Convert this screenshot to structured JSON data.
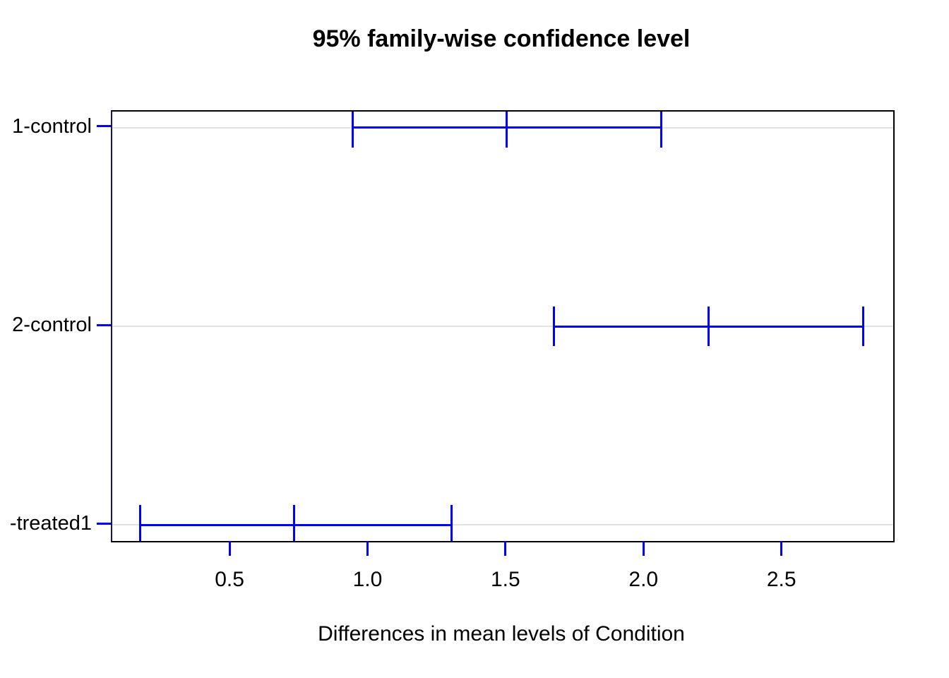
{
  "chart_data": {
    "type": "scatter",
    "subtype": "tukey-hsd-confidence-intervals",
    "title": "95% family-wise confidence level",
    "xlabel": "Differences in mean levels of Condition",
    "ylabel": "",
    "x_ticks": [
      0.5,
      1.0,
      1.5,
      2.0,
      2.5
    ],
    "x_tick_labels": [
      "0.5",
      "1.0",
      "1.5",
      "2.0",
      "2.5"
    ],
    "xlim": [
      0.07,
      2.9
    ],
    "ylim": [
      0.92,
      3.08
    ],
    "endpoint_tick_half_height_y_units": 0.1,
    "grid": true,
    "legend": false,
    "comparisons": [
      {
        "label": "1-control",
        "y": 3,
        "diff": 1.5,
        "lwr": 0.94,
        "upr": 2.06
      },
      {
        "label": "2-control",
        "y": 2,
        "diff": 2.23,
        "lwr": 1.67,
        "upr": 2.79
      },
      {
        "label": "-treated1",
        "y": 1,
        "diff": 0.73,
        "lwr": 0.17,
        "upr": 1.3
      }
    ],
    "colors": {
      "interval": "#0000ff",
      "axis_ticks": "#0000ff",
      "gridline": "#e2e2e2",
      "box": "#000000",
      "text": "#000000",
      "background": "#ffffff"
    }
  }
}
